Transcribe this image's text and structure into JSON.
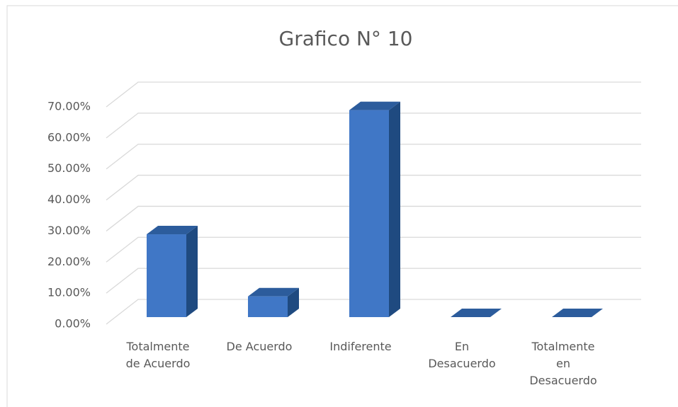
{
  "chart_data": {
    "type": "bar3d",
    "title": "Grafico N° 10",
    "categories": [
      "Totalmente de Acuerdo",
      "De Acuerdo",
      "Indiferente",
      "En Desacuerdo",
      "Totalmente en Desacuerdo"
    ],
    "values": [
      26.67,
      6.67,
      66.67,
      0,
      0
    ],
    "color": "#4077c6",
    "ylim": [
      0,
      70
    ],
    "yticks": [
      {
        "value": 0,
        "label": "0.00%"
      },
      {
        "value": 10,
        "label": "10.00%"
      },
      {
        "value": 20,
        "label": "20.00%"
      },
      {
        "value": 30,
        "label": "30.00%"
      },
      {
        "value": 40,
        "label": "40.00%"
      },
      {
        "value": 50,
        "label": "50.00%"
      },
      {
        "value": 60,
        "label": "60.00%"
      },
      {
        "value": 70,
        "label": "70.00%"
      }
    ],
    "grid": true
  }
}
